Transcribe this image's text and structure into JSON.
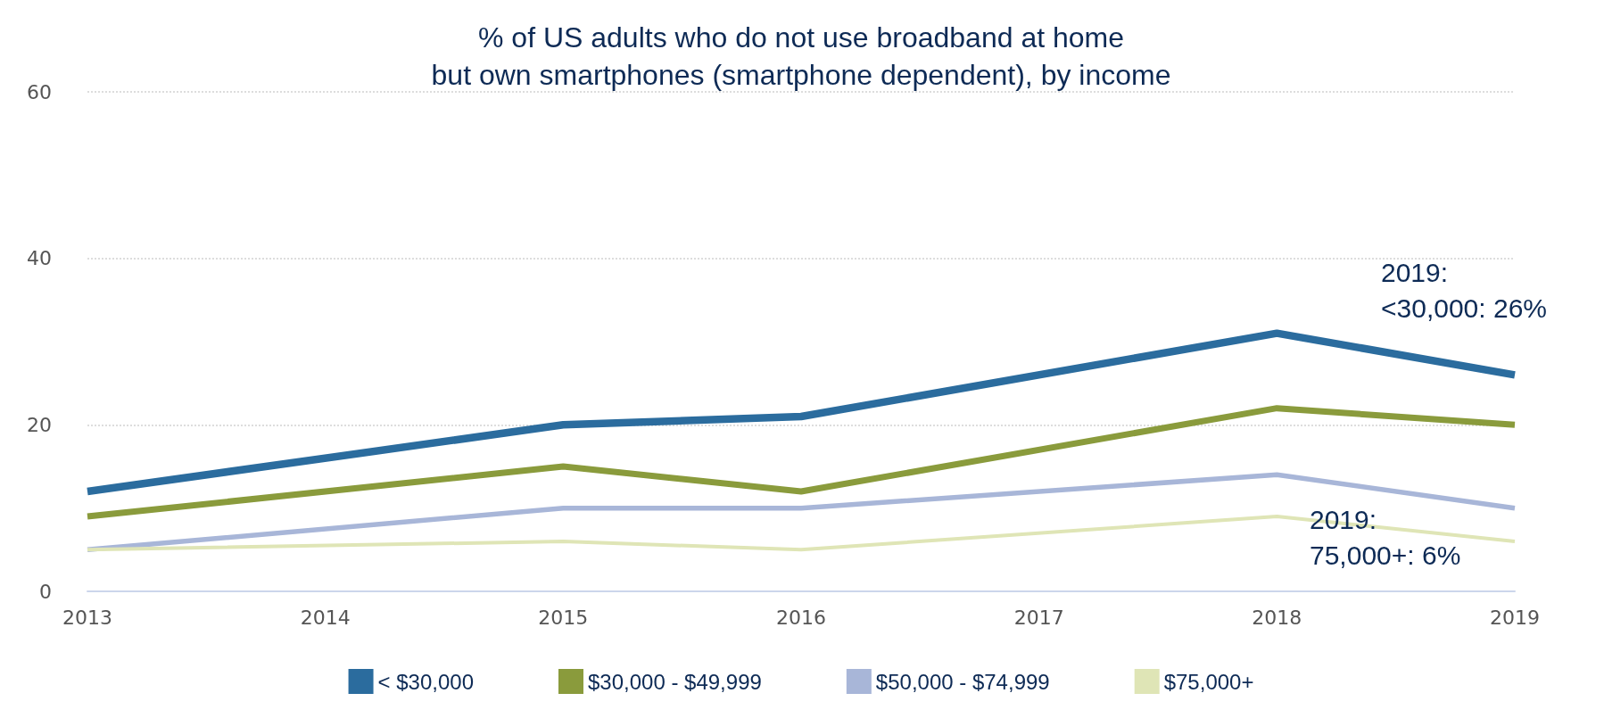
{
  "chart_data": {
    "type": "line",
    "title": "% of US adults who do not use broadband at home\nbut own smartphones (smartphone dependent), by income",
    "xlim": [
      2013,
      2019
    ],
    "xticks": [
      2013,
      2014,
      2015,
      2016,
      2017,
      2018,
      2019
    ],
    "ylim": [
      0,
      60
    ],
    "yticks": [
      0,
      20,
      40,
      60
    ],
    "grid": "y",
    "legend": "bottom",
    "marker": "none",
    "series": [
      {
        "name": "< $30,000",
        "color": "#2b6c9e",
        "x": [
          2013,
          2015,
          2016,
          2018,
          2019
        ],
        "values": [
          12,
          20,
          21,
          31,
          26
        ]
      },
      {
        "name": "$30,000 - $49,999",
        "color": "#8a9b3c",
        "x": [
          2013,
          2015,
          2016,
          2018,
          2019
        ],
        "values": [
          9,
          15,
          12,
          22,
          20
        ]
      },
      {
        "name": "$50,000 - $74,999",
        "color": "#a8b6d8",
        "x": [
          2013,
          2015,
          2016,
          2018,
          2019
        ],
        "values": [
          5,
          10,
          10,
          14,
          10
        ]
      },
      {
        "name": "$75,000+",
        "color": "#dfe5b6",
        "x": [
          2013,
          2015,
          2016,
          2018,
          2019
        ],
        "values": [
          5,
          6,
          5,
          9,
          6
        ]
      }
    ],
    "annotations": [
      {
        "text": "2019:\n<30,000: 26%",
        "x": 2019,
        "y": 26
      },
      {
        "text": "2019:\n75,000+: 6%",
        "x": 2019,
        "y": 6
      }
    ]
  }
}
